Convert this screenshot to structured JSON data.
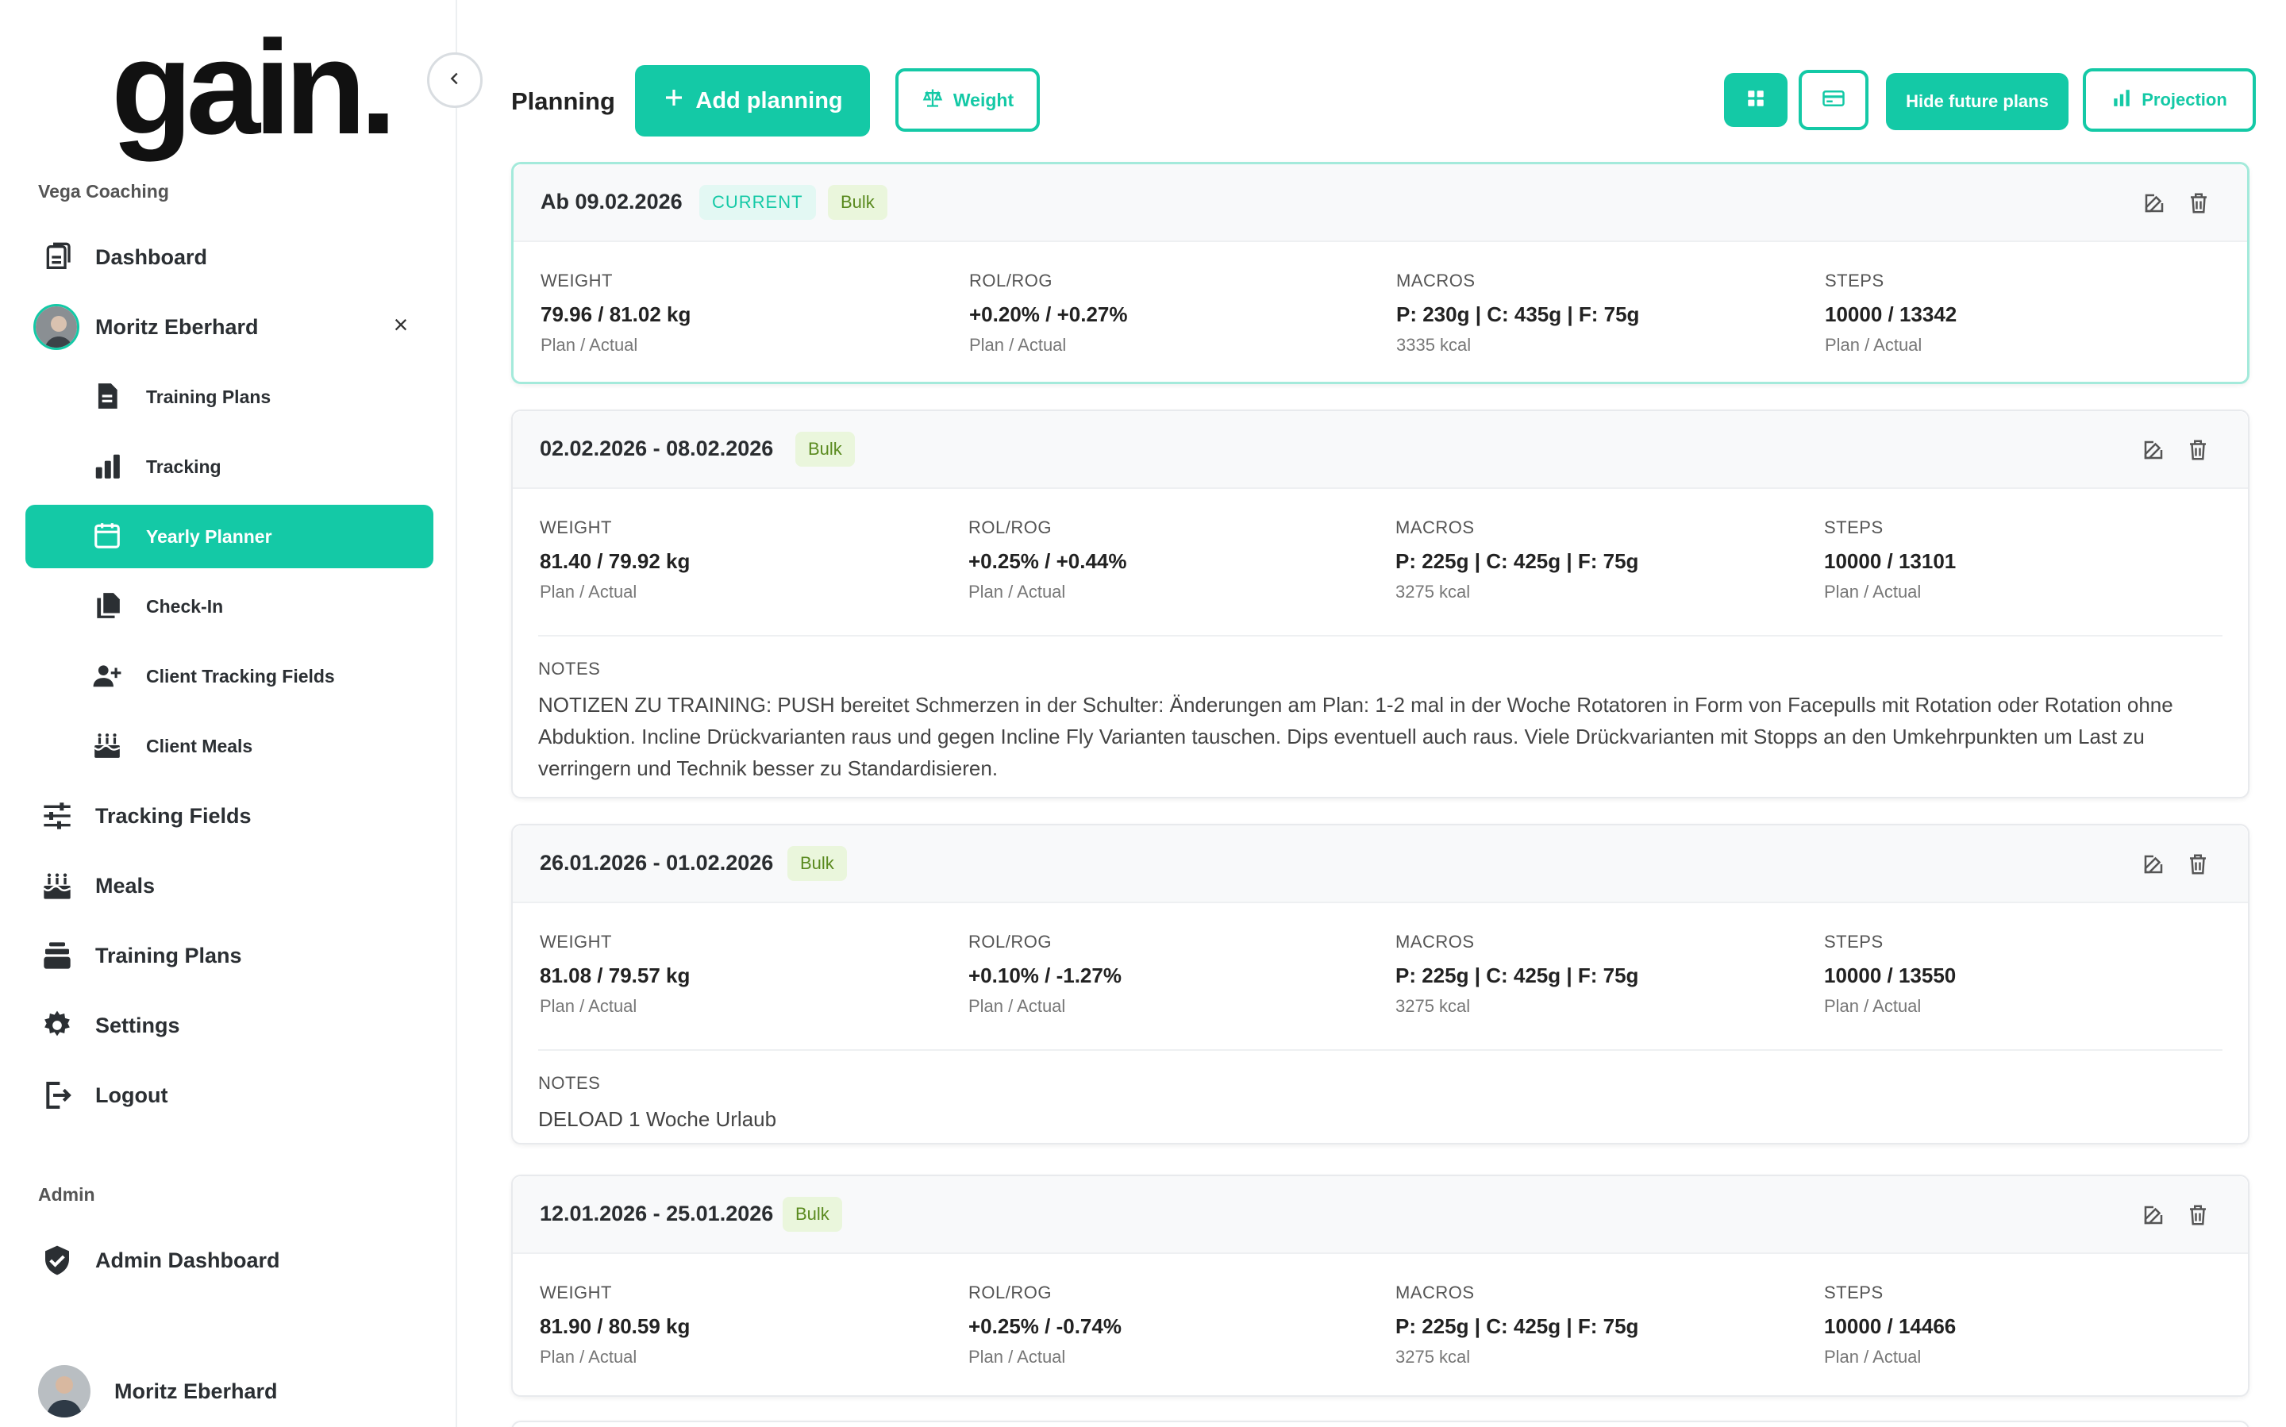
{
  "app": {
    "logo": "gain."
  },
  "sidebar": {
    "org_title": "Vega Coaching",
    "items": [
      {
        "label": "Dashboard",
        "icon": "dashboard-icon"
      },
      {
        "label": "Moritz Eberhard",
        "icon": "avatar"
      },
      {
        "label": "Training Plans",
        "icon": "document-icon"
      },
      {
        "label": "Tracking",
        "icon": "bar-chart-icon"
      },
      {
        "label": "Yearly Planner",
        "icon": "calendar-icon",
        "active": true
      },
      {
        "label": "Check-In",
        "icon": "copy-icon"
      },
      {
        "label": "Client Tracking Fields",
        "icon": "user-plus-icon"
      },
      {
        "label": "Client Meals",
        "icon": "cake-icon"
      },
      {
        "label": "Tracking Fields",
        "icon": "sliders-icon"
      },
      {
        "label": "Meals",
        "icon": "cake-icon"
      },
      {
        "label": "Training Plans",
        "icon": "stack-icon"
      },
      {
        "label": "Settings",
        "icon": "gear-icon"
      },
      {
        "label": "Logout",
        "icon": "logout-icon"
      }
    ],
    "admin_title": "Admin",
    "admin_items": [
      {
        "label": "Admin Dashboard",
        "icon": "shield-icon"
      }
    ],
    "user_name": "Moritz Eberhard"
  },
  "toolbar": {
    "title": "Planning",
    "add_label": "Add planning",
    "weight_label": "Weight",
    "hide_future_label": "Hide future plans",
    "projection_label": "Projection"
  },
  "colors": {
    "accent": "#14c9a6",
    "bulk_bg": "#eaf6dc",
    "bulk_text": "#5a8a1f"
  },
  "labels": {
    "weight": "WEIGHT",
    "rol": "ROL/ROG",
    "macros": "MACROS",
    "steps": "STEPS",
    "plan_actual": "Plan / Actual",
    "notes": "NOTES"
  },
  "plans": [
    {
      "date": "Ab 09.02.2026",
      "current_badge": "CURRENT",
      "phase": "Bulk",
      "weight": "79.96 / 81.02 kg",
      "rol": "+0.20% / +0.27%",
      "macros": "P: 230g | C: 435g | F: 75g",
      "kcal": "3335 kcal",
      "steps": "10000 / 13342"
    },
    {
      "date": "02.02.2026 - 08.02.2026",
      "phase": "Bulk",
      "weight": "81.40 / 79.92 kg",
      "rol": "+0.25% / +0.44%",
      "macros": "P: 225g | C: 425g | F: 75g",
      "kcal": "3275 kcal",
      "steps": "10000 / 13101",
      "notes": "NOTIZEN ZU TRAINING: PUSH bereitet Schmerzen in der Schulter: Änderungen am Plan: 1-2 mal in der Woche Rotatoren in Form von Facepulls mit Rotation oder Rotation ohne Abduktion. Incline Drückvarianten raus und gegen Incline Fly Varianten tauschen. Dips eventuell auch raus. Viele Drückvarianten mit Stopps an den Umkehrpunkten um Last zu verringern und Technik besser zu Standardisieren."
    },
    {
      "date": "26.01.2026 - 01.02.2026",
      "phase": "Bulk",
      "weight": "81.08 / 79.57 kg",
      "rol": "+0.10% / -1.27%",
      "macros": "P: 225g | C: 425g | F: 75g",
      "kcal": "3275 kcal",
      "steps": "10000 / 13550",
      "notes": "DELOAD 1 Woche Urlaub"
    },
    {
      "date": "12.01.2026 - 25.01.2026",
      "phase": "Bulk",
      "weight": "81.90 / 80.59 kg",
      "rol": "+0.25% / -0.74%",
      "macros": "P: 225g | C: 425g | F: 75g",
      "kcal": "3275 kcal",
      "steps": "10000 / 14466"
    }
  ]
}
